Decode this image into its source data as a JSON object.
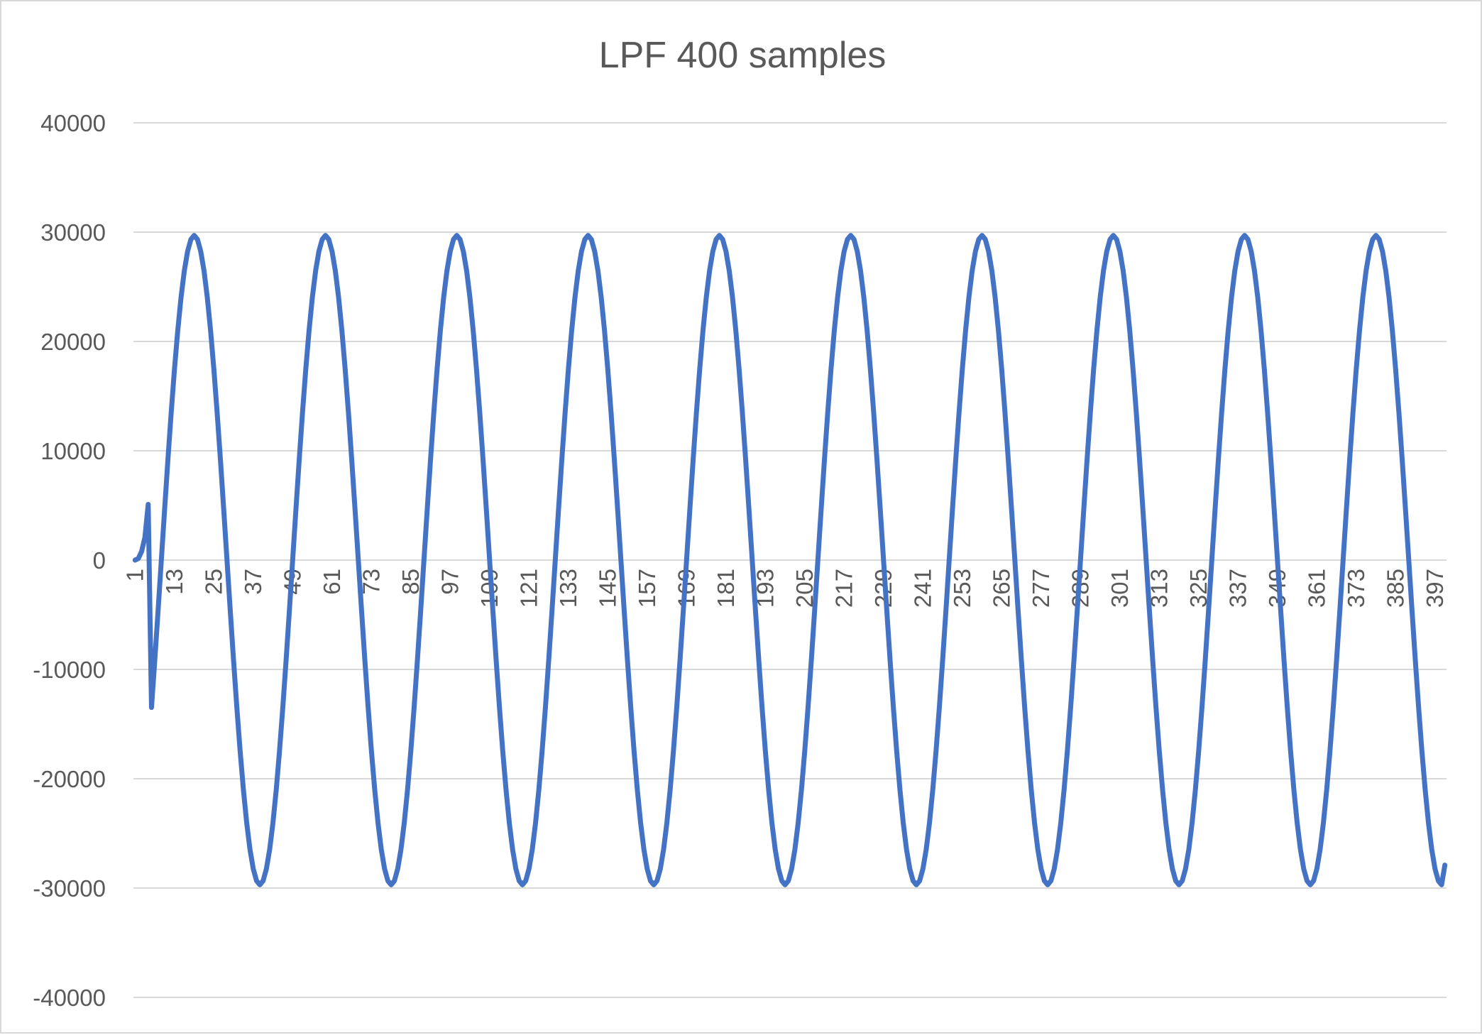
{
  "chart_data": {
    "type": "line",
    "title": "LPF 400 samples",
    "xlabel": "",
    "ylabel": "",
    "ylim": [
      -40000,
      40000
    ],
    "y_ticks": [
      40000,
      30000,
      20000,
      10000,
      0,
      -10000,
      -20000,
      -30000,
      -40000
    ],
    "x_range": [
      1,
      400
    ],
    "x_tick_labels": [
      "1",
      "13",
      "25",
      "37",
      "49",
      "61",
      "73",
      "85",
      "97",
      "109",
      "121",
      "133",
      "145",
      "157",
      "169",
      "181",
      "193",
      "205",
      "217",
      "229",
      "241",
      "253",
      "265",
      "277",
      "289",
      "301",
      "313",
      "325",
      "337",
      "349",
      "361",
      "373",
      "385",
      "397"
    ],
    "grid": true,
    "legend": "none",
    "series": [
      {
        "color": "#4472c4",
        "generator": {
          "kind": "sine_with_startup_ramp",
          "amplitude": 29700,
          "period_samples": 40,
          "first_peak_sample": 19,
          "ramp_end_sample": 13,
          "initial_values": [
            {
              "x": 1,
              "y": 0
            },
            {
              "x": 2,
              "y": 150
            },
            {
              "x": 3,
              "y": 800
            },
            {
              "x": 4,
              "y": 2100
            },
            {
              "x": 5,
              "y": 5100
            }
          ],
          "last_value": -27900
        }
      }
    ]
  }
}
